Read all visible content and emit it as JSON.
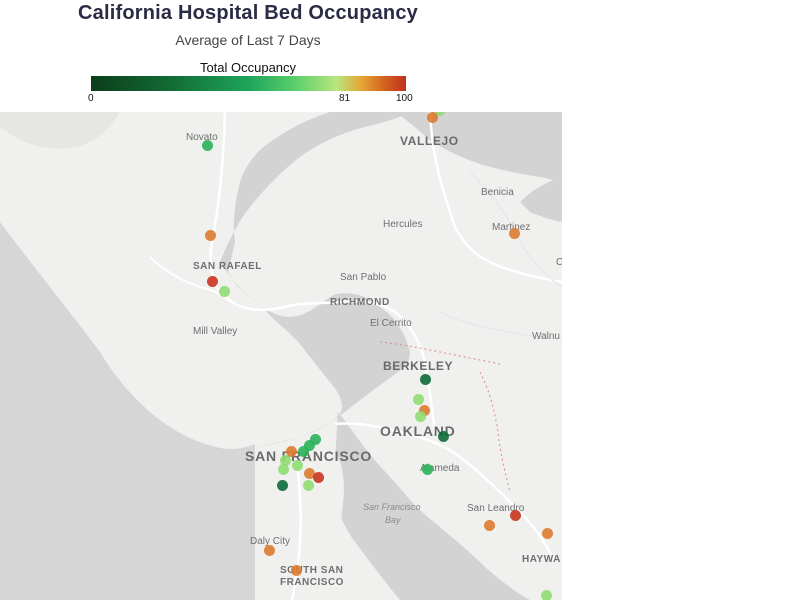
{
  "title": "California Hospital Bed Occupancy",
  "subtitle": "Average of Last 7 Days",
  "legend": {
    "title": "Total Occupancy",
    "ticks": [
      "0",
      "81",
      "100"
    ]
  },
  "places": {
    "novato": "Novato",
    "vallejo": "VALLEJO",
    "benicia": "Benicia",
    "hercules": "Hercules",
    "martinez": "Martinez",
    "san_rafael": "SAN RAFAEL",
    "san_pablo": "San Pablo",
    "richmond": "RICHMOND",
    "el_cerrito": "El Cerrito",
    "mill_valley": "Mill Valley",
    "walnut": "Walnu",
    "berkeley": "BERKELEY",
    "oakland": "OAKLAND",
    "san_francisco": "SAN FRANCISCO",
    "alameda": "Alameda",
    "sf_bay_line1": "San Francisco",
    "sf_bay_line2": "Bay",
    "san_leandro": "San Leandro",
    "daly_city": "Daly City",
    "south_sf_line1": "SOUTH SAN",
    "south_sf_line2": "FRANCISCO",
    "hayward": "HAYWA",
    "c_edge": "C"
  },
  "colors": {
    "dark_green": "#0d6b3a",
    "green": "#29b35a",
    "light_green": "#8fdc72",
    "orange": "#dd7a30",
    "red": "#c9351f"
  },
  "hospitals": [
    {
      "occupancy_band": "light_green"
    },
    {
      "occupancy_band": "orange"
    },
    {
      "occupancy_band": "green"
    },
    {
      "occupancy_band": "orange"
    },
    {
      "occupancy_band": "orange"
    },
    {
      "occupancy_band": "red"
    },
    {
      "occupancy_band": "light_green"
    },
    {
      "occupancy_band": "dark_green"
    },
    {
      "occupancy_band": "light_green"
    },
    {
      "occupancy_band": "orange"
    },
    {
      "occupancy_band": "light_green"
    },
    {
      "occupancy_band": "dark_green"
    },
    {
      "occupancy_band": "green"
    },
    {
      "occupancy_band": "green"
    },
    {
      "occupancy_band": "green"
    },
    {
      "occupancy_band": "orange"
    },
    {
      "occupancy_band": "light_green"
    },
    {
      "occupancy_band": "light_green"
    },
    {
      "occupancy_band": "light_green"
    },
    {
      "occupancy_band": "orange"
    },
    {
      "occupancy_band": "red"
    },
    {
      "occupancy_band": "dark_green"
    },
    {
      "occupancy_band": "light_green"
    },
    {
      "occupancy_band": "green"
    },
    {
      "occupancy_band": "orange"
    },
    {
      "occupancy_band": "red"
    },
    {
      "occupancy_band": "orange"
    },
    {
      "occupancy_band": "orange"
    },
    {
      "occupancy_band": "orange"
    },
    {
      "occupancy_band": "light_green"
    }
  ]
}
